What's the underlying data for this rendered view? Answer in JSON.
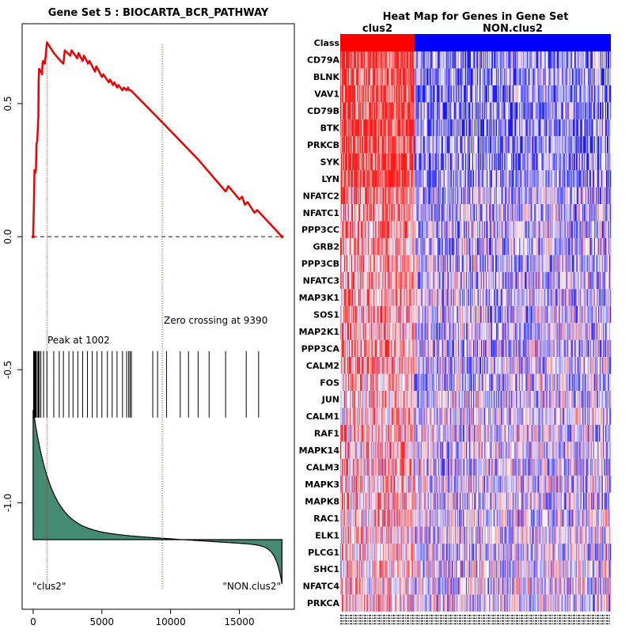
{
  "chart_data": [
    {
      "type": "line",
      "title": "Gene Set  5 : BIOCARTA_BCR_PATHWAY",
      "xlabel": "",
      "ylabel": "",
      "xlim": [
        -800,
        19000
      ],
      "ylim": [
        -1.4,
        0.8
      ],
      "xticks": [
        0,
        5000,
        10000,
        15000
      ],
      "xtick_labels": [
        "0",
        "5000",
        "10000",
        "15000"
      ],
      "yticks": [
        0.5,
        0.0,
        -0.5,
        -1.0
      ],
      "ytick_labels": [
        "0.5",
        "0.0",
        "-0.5",
        "-1.0"
      ],
      "colors": {
        "enrichment": "#ee0000",
        "peak_line": "#ee0000",
        "zero_line": "#009900",
        "ranked_fill": "#458b74"
      },
      "series": [
        {
          "name": "running enrichment score",
          "x": [
            0,
            60,
            100,
            150,
            200,
            250,
            300,
            380,
            400,
            430,
            470,
            500,
            600,
            650,
            680,
            720,
            800,
            850,
            880,
            900,
            1002,
            1500,
            2000,
            2200,
            2300,
            2700,
            2800,
            3200,
            3300,
            3600,
            3700,
            4000,
            4100,
            4500,
            4600,
            5000,
            5100,
            5500,
            5600,
            5800,
            5900,
            6100,
            6200,
            6500,
            6600,
            6800,
            6900,
            7000,
            7100,
            7300,
            9390,
            12000,
            13500,
            14000,
            14200,
            15000,
            15200,
            15400,
            15600,
            16100,
            16300,
            18100
          ],
          "y": [
            0.0,
            0.13,
            0.25,
            0.24,
            0.25,
            0.35,
            0.36,
            0.45,
            0.58,
            0.63,
            0.63,
            0.62,
            0.62,
            0.61,
            0.65,
            0.66,
            0.65,
            0.65,
            0.67,
            0.67,
            0.73,
            0.69,
            0.66,
            0.65,
            0.7,
            0.68,
            0.7,
            0.67,
            0.69,
            0.66,
            0.68,
            0.65,
            0.66,
            0.62,
            0.64,
            0.6,
            0.61,
            0.58,
            0.59,
            0.57,
            0.58,
            0.56,
            0.57,
            0.55,
            0.56,
            0.55,
            0.56,
            0.55,
            0.55,
            0.54,
            0.43,
            0.29,
            0.2,
            0.17,
            0.19,
            0.14,
            0.15,
            0.12,
            0.13,
            0.09,
            0.1,
            0.0
          ]
        }
      ],
      "hits": [
        30,
        70,
        100,
        150,
        210,
        300,
        380,
        450,
        560,
        760,
        1002,
        1500,
        1900,
        2200,
        2600,
        2900,
        3250,
        3600,
        3950,
        4300,
        4650,
        5000,
        5400,
        5750,
        6100,
        6500,
        6800,
        6950,
        7050,
        7150,
        8700,
        9050,
        9700,
        10700,
        11300,
        12000,
        12800,
        14000,
        15500,
        16400
      ],
      "annotations": [
        {
          "text": "Peak at 1002",
          "x": 1002
        },
        {
          "text": "Zero crossing at 9390",
          "x": 9390
        },
        {
          "text": "\"clus2\""
        },
        {
          "text": "\"NON.clus2\""
        }
      ]
    },
    {
      "type": "heatmap",
      "title": "Heat Map for Genes in Gene Set",
      "row_header": "Class",
      "class_groups": [
        {
          "name": "clus2",
          "color": "#ff0000"
        },
        {
          "name": "NON.clus2",
          "color": "#0000ff"
        }
      ],
      "genes": [
        "CD79A",
        "BLNK",
        "VAV1",
        "CD79B",
        "BTK",
        "PRKCB",
        "SYK",
        "LYN",
        "NFATC2",
        "NFATC1",
        "PPP3CC",
        "GRB2",
        "PPP3CB",
        "NFATC3",
        "MAP3K1",
        "SOS1",
        "MAP2K1",
        "PPP3CA",
        "CALM2",
        "FOS",
        "JUN",
        "CALM1",
        "RAF1",
        "MAPK14",
        "CALM3",
        "MAPK3",
        "MAPK8",
        "RAC1",
        "ELK1",
        "PLCG1",
        "SHC1",
        "NFATC4",
        "PRKCA"
      ]
    }
  ]
}
